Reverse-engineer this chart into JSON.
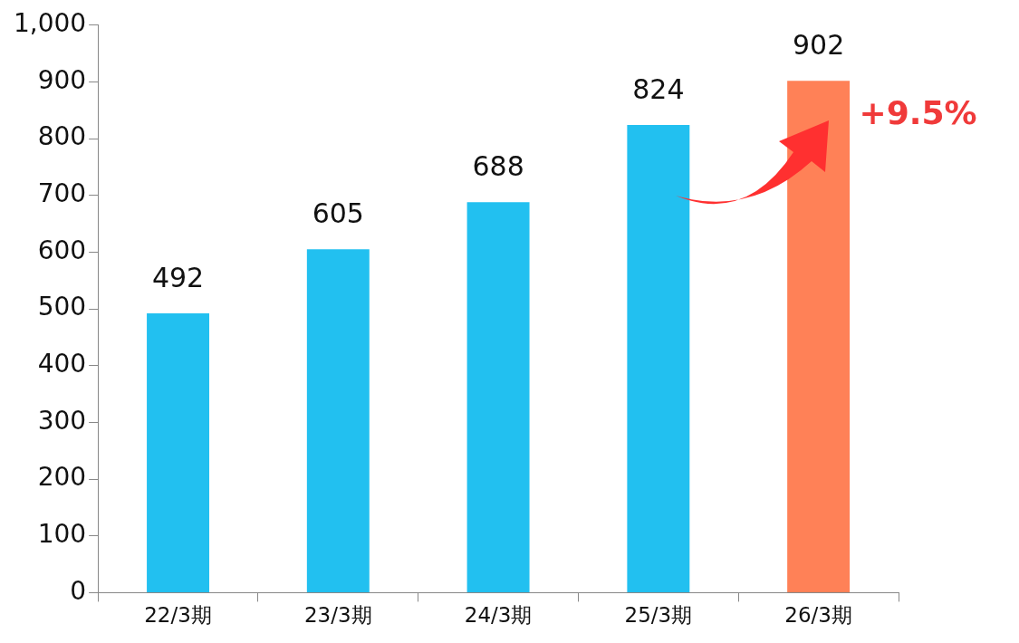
{
  "chart_data": {
    "type": "bar",
    "categories": [
      "22/3期",
      "23/3期",
      "24/3期",
      "25/3期",
      "26/3期"
    ],
    "values": [
      492,
      605,
      688,
      824,
      902
    ],
    "colors": [
      "#22c0f0",
      "#22c0f0",
      "#22c0f0",
      "#22c0f0",
      "#ff8157"
    ],
    "ylim": [
      0,
      1000
    ],
    "yticks": [
      0,
      100,
      200,
      300,
      400,
      500,
      600,
      700,
      800,
      900,
      {
        "value": 1000,
        "label": "1,000"
      }
    ],
    "data_labels": true,
    "grid": false,
    "legend": false,
    "annotations": [
      "+9.5%"
    ]
  }
}
